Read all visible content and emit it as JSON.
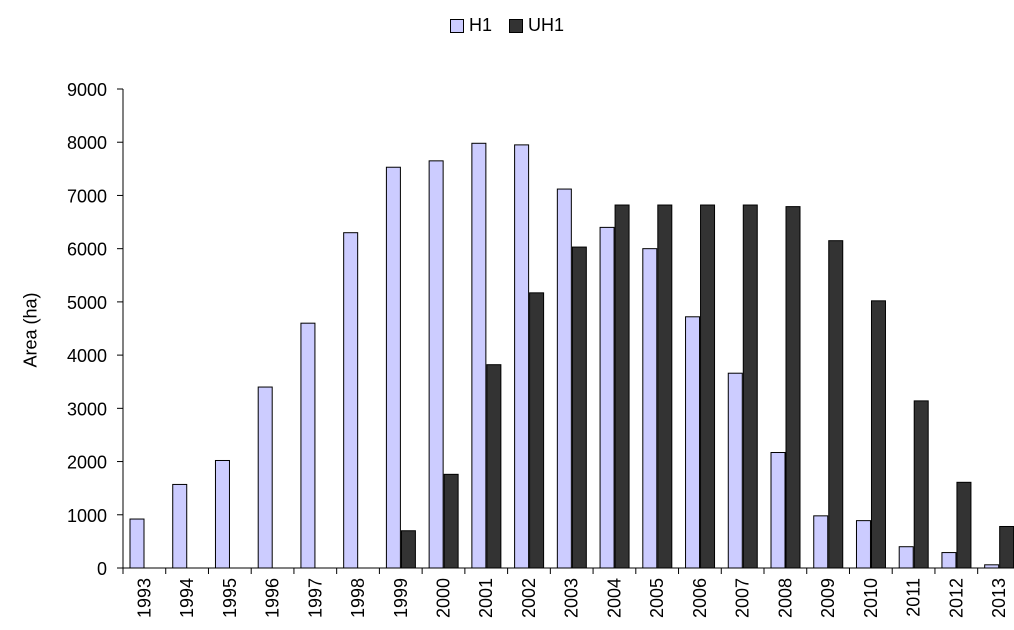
{
  "chart_data": {
    "type": "bar",
    "title": "",
    "xlabel": "",
    "ylabel": "Area (ha)",
    "ylim": [
      0,
      9000
    ],
    "yticks": [
      0,
      1000,
      2000,
      3000,
      4000,
      5000,
      6000,
      7000,
      8000,
      9000
    ],
    "legend_position": "top-center",
    "grid": false,
    "categories": [
      "1993",
      "1994",
      "1995",
      "1996",
      "1997",
      "1998",
      "1999",
      "2000",
      "2001",
      "2002",
      "2003",
      "2004",
      "2005",
      "2006",
      "2007",
      "2008",
      "2009",
      "2010",
      "2011",
      "2012",
      "2013"
    ],
    "series": [
      {
        "name": "H1",
        "color": "#ccccff",
        "values": [
          920,
          1570,
          2020,
          3400,
          4600,
          6300,
          7530,
          7650,
          7980,
          7950,
          7120,
          6400,
          6000,
          4720,
          3660,
          2170,
          980,
          890,
          400,
          290,
          60
        ]
      },
      {
        "name": "UH1",
        "color": "#333333",
        "values": [
          0,
          0,
          0,
          0,
          0,
          0,
          700,
          1760,
          3820,
          5170,
          6030,
          6820,
          6820,
          6820,
          6820,
          6790,
          6150,
          5020,
          3140,
          1610,
          780
        ]
      }
    ]
  }
}
